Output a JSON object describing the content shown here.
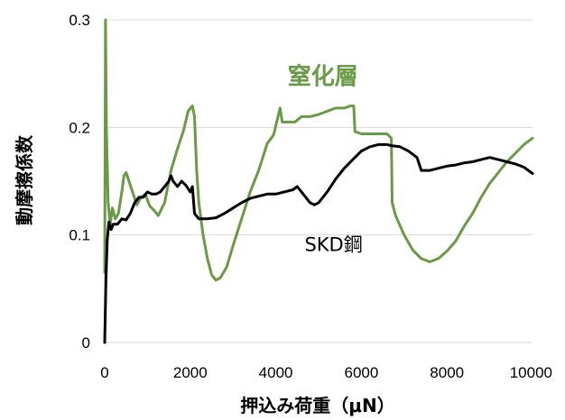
{
  "chart_data": {
    "type": "line",
    "title": "",
    "xlabel": "押込み荷重（μN）",
    "ylabel": "動摩擦係数",
    "xlim": [
      0,
      10000
    ],
    "ylim": [
      0,
      0.3
    ],
    "x_ticks": [
      0,
      2000,
      4000,
      6000,
      8000,
      10000
    ],
    "x_tick_labels": [
      "0",
      "2000",
      "4000",
      "6000",
      "8000",
      "10000"
    ],
    "y_ticks": [
      0,
      0.1,
      0.2,
      0.3
    ],
    "y_tick_labels": [
      "0",
      "0.1",
      "0.2",
      "0.3"
    ],
    "grid": "horizontal",
    "legend": "none (series labeled inline)",
    "series": [
      {
        "name": "窒化層",
        "color": "#6a9a45",
        "label_style": "bold-large",
        "points": [
          [
            0,
            0.065
          ],
          [
            20,
            0.3
          ],
          [
            40,
            0.2
          ],
          [
            80,
            0.13
          ],
          [
            130,
            0.11
          ],
          [
            180,
            0.125
          ],
          [
            250,
            0.115
          ],
          [
            320,
            0.12
          ],
          [
            400,
            0.14
          ],
          [
            450,
            0.155
          ],
          [
            500,
            0.158
          ],
          [
            550,
            0.152
          ],
          [
            650,
            0.14
          ],
          [
            750,
            0.128
          ],
          [
            850,
            0.135
          ],
          [
            950,
            0.138
          ],
          [
            1050,
            0.127
          ],
          [
            1150,
            0.123
          ],
          [
            1250,
            0.118
          ],
          [
            1400,
            0.13
          ],
          [
            1550,
            0.16
          ],
          [
            1700,
            0.18
          ],
          [
            1850,
            0.198
          ],
          [
            1950,
            0.215
          ],
          [
            2050,
            0.22
          ],
          [
            2100,
            0.21
          ],
          [
            2150,
            0.16
          ],
          [
            2200,
            0.13
          ],
          [
            2300,
            0.1
          ],
          [
            2400,
            0.078
          ],
          [
            2500,
            0.063
          ],
          [
            2600,
            0.058
          ],
          [
            2700,
            0.06
          ],
          [
            2850,
            0.07
          ],
          [
            3000,
            0.09
          ],
          [
            3200,
            0.115
          ],
          [
            3400,
            0.14
          ],
          [
            3600,
            0.16
          ],
          [
            3800,
            0.185
          ],
          [
            3950,
            0.193
          ],
          [
            4050,
            0.21
          ],
          [
            4100,
            0.218
          ],
          [
            4150,
            0.205
          ],
          [
            4300,
            0.205
          ],
          [
            4450,
            0.205
          ],
          [
            4600,
            0.21
          ],
          [
            4800,
            0.21
          ],
          [
            5000,
            0.212
          ],
          [
            5200,
            0.215
          ],
          [
            5400,
            0.218
          ],
          [
            5600,
            0.218
          ],
          [
            5750,
            0.22
          ],
          [
            5820,
            0.22
          ],
          [
            5850,
            0.196
          ],
          [
            6000,
            0.194
          ],
          [
            6200,
            0.194
          ],
          [
            6400,
            0.194
          ],
          [
            6600,
            0.194
          ],
          [
            6700,
            0.19
          ],
          [
            6720,
            0.13
          ],
          [
            6800,
            0.118
          ],
          [
            7000,
            0.1
          ],
          [
            7200,
            0.086
          ],
          [
            7400,
            0.078
          ],
          [
            7600,
            0.075
          ],
          [
            7800,
            0.078
          ],
          [
            8000,
            0.085
          ],
          [
            8200,
            0.094
          ],
          [
            8400,
            0.108
          ],
          [
            8600,
            0.12
          ],
          [
            8800,
            0.135
          ],
          [
            9000,
            0.148
          ],
          [
            9200,
            0.158
          ],
          [
            9400,
            0.168
          ],
          [
            9600,
            0.176
          ],
          [
            9800,
            0.184
          ],
          [
            10000,
            0.19
          ]
        ]
      },
      {
        "name": "SKD鋼",
        "color": "#000000",
        "label_style": "normal",
        "points": [
          [
            0,
            0.0
          ],
          [
            30,
            0.06
          ],
          [
            60,
            0.095
          ],
          [
            100,
            0.112
          ],
          [
            150,
            0.105
          ],
          [
            200,
            0.11
          ],
          [
            300,
            0.11
          ],
          [
            400,
            0.115
          ],
          [
            500,
            0.114
          ],
          [
            600,
            0.12
          ],
          [
            700,
            0.13
          ],
          [
            800,
            0.135
          ],
          [
            900,
            0.135
          ],
          [
            1000,
            0.14
          ],
          [
            1100,
            0.138
          ],
          [
            1200,
            0.138
          ],
          [
            1300,
            0.14
          ],
          [
            1400,
            0.145
          ],
          [
            1500,
            0.15
          ],
          [
            1550,
            0.155
          ],
          [
            1600,
            0.15
          ],
          [
            1700,
            0.145
          ],
          [
            1800,
            0.15
          ],
          [
            1900,
            0.146
          ],
          [
            2000,
            0.14
          ],
          [
            2050,
            0.145
          ],
          [
            2100,
            0.12
          ],
          [
            2200,
            0.115
          ],
          [
            2400,
            0.115
          ],
          [
            2600,
            0.116
          ],
          [
            2800,
            0.12
          ],
          [
            3000,
            0.125
          ],
          [
            3200,
            0.13
          ],
          [
            3400,
            0.134
          ],
          [
            3600,
            0.136
          ],
          [
            3800,
            0.138
          ],
          [
            4000,
            0.138
          ],
          [
            4200,
            0.14
          ],
          [
            4400,
            0.142
          ],
          [
            4500,
            0.145
          ],
          [
            4600,
            0.14
          ],
          [
            4700,
            0.135
          ],
          [
            4800,
            0.13
          ],
          [
            4900,
            0.128
          ],
          [
            5000,
            0.13
          ],
          [
            5200,
            0.14
          ],
          [
            5400,
            0.152
          ],
          [
            5600,
            0.162
          ],
          [
            5800,
            0.17
          ],
          [
            6000,
            0.178
          ],
          [
            6200,
            0.182
          ],
          [
            6400,
            0.184
          ],
          [
            6600,
            0.184
          ],
          [
            6700,
            0.183
          ],
          [
            6900,
            0.182
          ],
          [
            7100,
            0.178
          ],
          [
            7300,
            0.172
          ],
          [
            7400,
            0.16
          ],
          [
            7600,
            0.16
          ],
          [
            7800,
            0.162
          ],
          [
            8000,
            0.164
          ],
          [
            8200,
            0.165
          ],
          [
            8400,
            0.167
          ],
          [
            8600,
            0.168
          ],
          [
            8800,
            0.17
          ],
          [
            9000,
            0.172
          ],
          [
            9200,
            0.17
          ],
          [
            9400,
            0.168
          ],
          [
            9600,
            0.166
          ],
          [
            9800,
            0.163
          ],
          [
            10000,
            0.157
          ]
        ]
      }
    ],
    "annotations": [
      {
        "text": "窒化層",
        "x": 5100,
        "y": 0.24,
        "color": "#6a9a45",
        "size": 26,
        "weight": "bold"
      },
      {
        "text": "SKD鋼",
        "x": 5350,
        "y": 0.085,
        "color": "#000000",
        "size": 21,
        "weight": "normal"
      }
    ]
  }
}
